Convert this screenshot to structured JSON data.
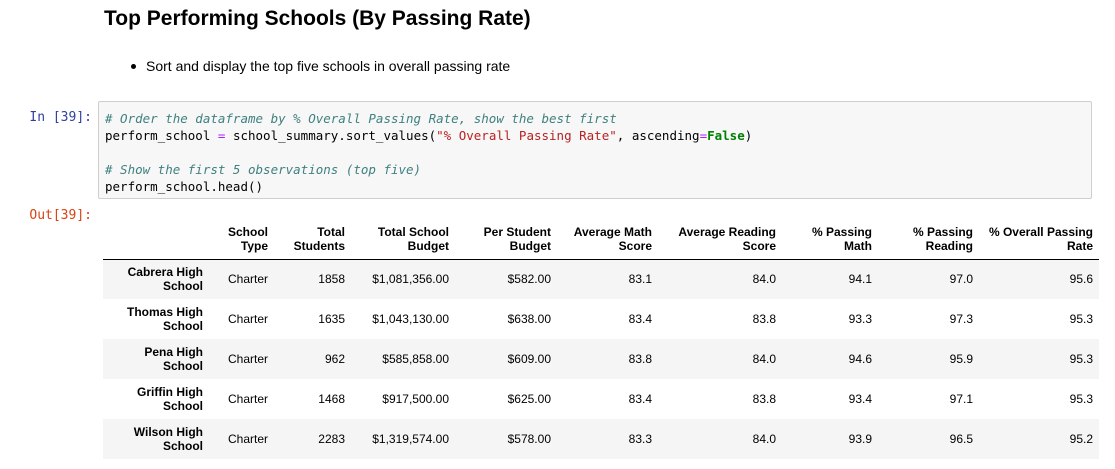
{
  "heading": "Top Performing Schools (By Passing Rate)",
  "bullets": [
    "Sort and display the top five schools in overall passing rate"
  ],
  "cell": {
    "in_prompt": "In [39]:",
    "out_prompt": "Out[39]:",
    "code": {
      "line1_comment": "# Order the dataframe by % Overall Passing Rate, show the best first",
      "line2_prefix": "perform_school ",
      "line2_eq1": "=",
      "line2_mid": " school_summary.sort_values(",
      "line2_str": "\"% Overall Passing Rate\"",
      "line2_comma": ", ascending",
      "line2_eq2": "=",
      "line2_kw": "False",
      "line2_end": ")",
      "line4_comment": "# Show the first 5 observations (top five)",
      "line5": "perform_school.head()"
    }
  },
  "table": {
    "columns": [
      [
        "School",
        "Type"
      ],
      [
        "Total",
        "Students"
      ],
      [
        "Total School",
        "Budget"
      ],
      [
        "Per Student",
        "Budget"
      ],
      [
        "Average Math",
        "Score"
      ],
      [
        "Average Reading",
        "Score"
      ],
      [
        "% Passing",
        "Math"
      ],
      [
        "% Passing",
        "Reading"
      ],
      [
        "% Overall Passing",
        "Rate"
      ]
    ],
    "rows": [
      {
        "index": [
          "Cabrera High",
          "School"
        ],
        "cells": [
          "Charter",
          "1858",
          "$1,081,356.00",
          "$582.00",
          "83.1",
          "84.0",
          "94.1",
          "97.0",
          "95.6"
        ]
      },
      {
        "index": [
          "Thomas High",
          "School"
        ],
        "cells": [
          "Charter",
          "1635",
          "$1,043,130.00",
          "$638.00",
          "83.4",
          "83.8",
          "93.3",
          "97.3",
          "95.3"
        ]
      },
      {
        "index": [
          "Pena High",
          "School"
        ],
        "cells": [
          "Charter",
          "962",
          "$585,858.00",
          "$609.00",
          "83.8",
          "84.0",
          "94.6",
          "95.9",
          "95.3"
        ]
      },
      {
        "index": [
          "Griffin High",
          "School"
        ],
        "cells": [
          "Charter",
          "1468",
          "$917,500.00",
          "$625.00",
          "83.4",
          "83.8",
          "93.4",
          "97.1",
          "95.3"
        ]
      },
      {
        "index": [
          "Wilson High",
          "School"
        ],
        "cells": [
          "Charter",
          "2283",
          "$1,319,574.00",
          "$578.00",
          "83.3",
          "84.0",
          "93.9",
          "96.5",
          "95.2"
        ]
      }
    ]
  }
}
